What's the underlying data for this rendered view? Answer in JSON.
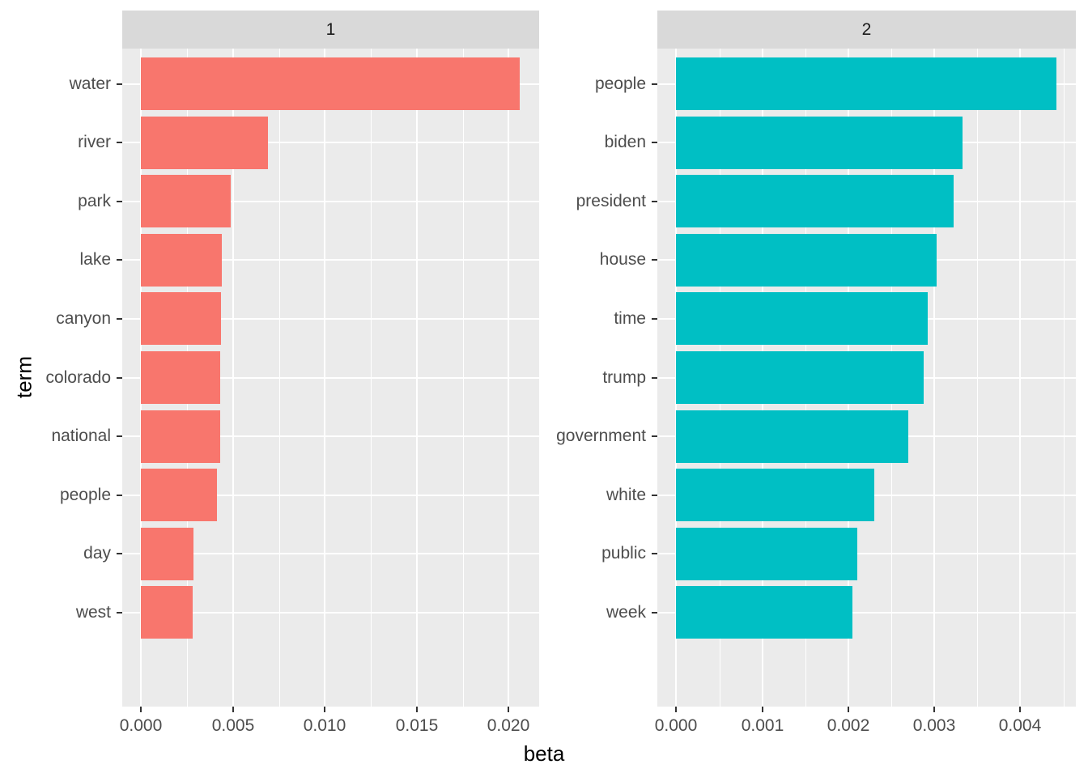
{
  "chart_data": {
    "type": "bar",
    "orientation": "horizontal",
    "title": "",
    "xlabel": "beta",
    "ylabel": "term",
    "grid": true,
    "facets": [
      {
        "label": "1",
        "bar_color": "#F8766D",
        "categories": [
          "water",
          "river",
          "park",
          "lake",
          "canyon",
          "colorado",
          "national",
          "people",
          "day",
          "west"
        ],
        "values": [
          0.0206,
          0.0069,
          0.0049,
          0.0044,
          0.00435,
          0.00432,
          0.0043,
          0.00413,
          0.00285,
          0.00284
        ],
        "x_ticks": [
          0.0,
          0.005,
          0.01,
          0.015,
          0.02
        ],
        "x_tick_labels": [
          "0.000",
          "0.005",
          "0.010",
          "0.015",
          "0.020"
        ],
        "xlim": [
          -0.00103,
          0.02166
        ]
      },
      {
        "label": "2",
        "bar_color": "#00BFC4",
        "categories": [
          "people",
          "biden",
          "president",
          "house",
          "time",
          "trump",
          "government",
          "white",
          "public",
          "week"
        ],
        "values": [
          0.00442,
          0.00333,
          0.00323,
          0.00303,
          0.00293,
          0.00288,
          0.0027,
          0.00231,
          0.00211,
          0.00205
        ],
        "x_ticks": [
          0.0,
          0.001,
          0.002,
          0.003,
          0.004
        ],
        "x_tick_labels": [
          "0.000",
          "0.001",
          "0.002",
          "0.003",
          "0.004"
        ],
        "xlim": [
          -0.000221,
          0.004645
        ]
      }
    ],
    "style": {
      "panel_bg": "#EBEBEB",
      "strip_bg": "#D9D9D9",
      "grid_color": "#FFFFFF",
      "tick_label_color": "#4D4D4D",
      "axis_title_color": "#000000",
      "strip_text_color": "#1A1A1A",
      "bar_width_fraction": 0.9,
      "axis_expansion": 0.05
    }
  }
}
